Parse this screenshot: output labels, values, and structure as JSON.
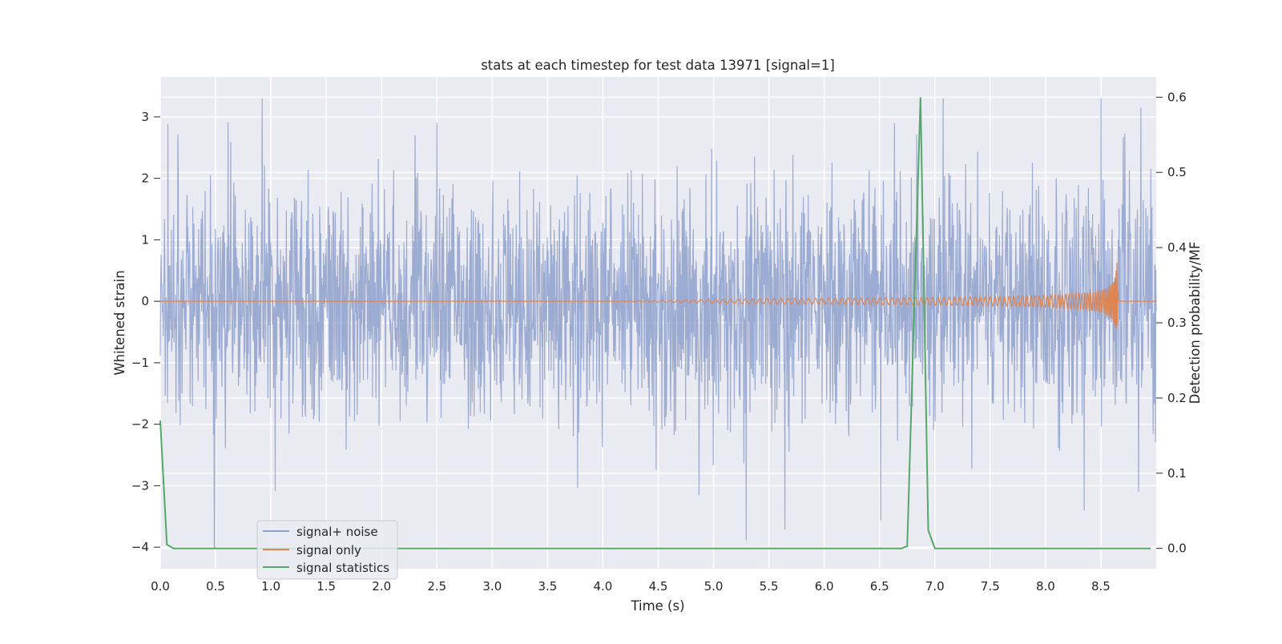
{
  "chart_data": {
    "type": "line",
    "title": "stats at each timestep for test data 13971 [signal=1]",
    "xlabel": "Time (s)",
    "ylabel": "Whitened strain",
    "ylabel_right": "Detection probability/MF",
    "xlim": [
      0.0,
      9.0
    ],
    "ylim": [
      -4.35,
      3.65
    ],
    "ylim_right": [
      -0.027,
      0.627
    ],
    "x_ticks": [
      0.0,
      0.5,
      1.0,
      1.5,
      2.0,
      2.5,
      3.0,
      3.5,
      4.0,
      4.5,
      5.0,
      5.5,
      6.0,
      6.5,
      7.0,
      7.5,
      8.0,
      8.5
    ],
    "x_tick_labels": [
      "0.0",
      "0.5",
      "1.0",
      "1.5",
      "2.0",
      "2.5",
      "3.0",
      "3.5",
      "4.0",
      "4.5",
      "5.0",
      "5.5",
      "6.0",
      "6.5",
      "7.0",
      "7.5",
      "8.0",
      "8.5"
    ],
    "y_ticks": [
      -4,
      -3,
      -2,
      -1,
      0,
      1,
      2,
      3
    ],
    "y_tick_labels": [
      "−4",
      "−3",
      "−2",
      "−1",
      "0",
      "1",
      "2",
      "3"
    ],
    "y_right_ticks": [
      0.0,
      0.1,
      0.2,
      0.3,
      0.4,
      0.5,
      0.6
    ],
    "y_right_tick_labels": [
      "0.0",
      "0.1",
      "0.2",
      "0.3",
      "0.4",
      "0.5",
      "0.6"
    ],
    "grid": true,
    "legend_position": "lower-left",
    "colors": {
      "axes_background": "#eaeaf2",
      "grid": "#ffffff",
      "noise": "#8da0cb",
      "signal": "#dd8452",
      "stats": "#55a868"
    },
    "series": [
      {
        "name": "signal+ noise",
        "axis": "left",
        "description_values": "whitened noise, approximately Gaussian, sigma ~0.95, range roughly [-4, 3.3]",
        "x_range": [
          0.0,
          9.0
        ],
        "outliers": [
          {
            "x": 0.49,
            "y": -4.0
          },
          {
            "x": 2.5,
            "y": 2.9
          },
          {
            "x": 4.87,
            "y": -3.15
          },
          {
            "x": 8.35,
            "y": -3.4
          },
          {
            "x": 8.5,
            "y": 3.3
          },
          {
            "x": 8.84,
            "y": -3.1
          },
          {
            "x": 8.86,
            "y": 3.15
          }
        ]
      },
      {
        "name": "signal only",
        "axis": "left",
        "chirp": {
          "start_x": 4.0,
          "merger_x": 8.65,
          "peak_amplitude": 0.95,
          "end_x": 8.66
        }
      },
      {
        "name": "signal statistics",
        "axis": "right",
        "x": [
          0.0,
          0.06,
          0.12,
          0.5,
          1.0,
          2.0,
          3.0,
          4.0,
          5.0,
          6.0,
          6.5,
          6.7,
          6.75,
          6.87,
          6.94,
          7.0,
          7.5,
          8.0,
          8.5,
          8.95
        ],
        "y": [
          0.17,
          0.005,
          0.0,
          0.0,
          0.0,
          0.0,
          0.0,
          0.0,
          0.0,
          0.0,
          0.0,
          0.0,
          0.003,
          0.6,
          0.024,
          0.0,
          0.0,
          0.0,
          0.0,
          0.0
        ]
      }
    ]
  }
}
